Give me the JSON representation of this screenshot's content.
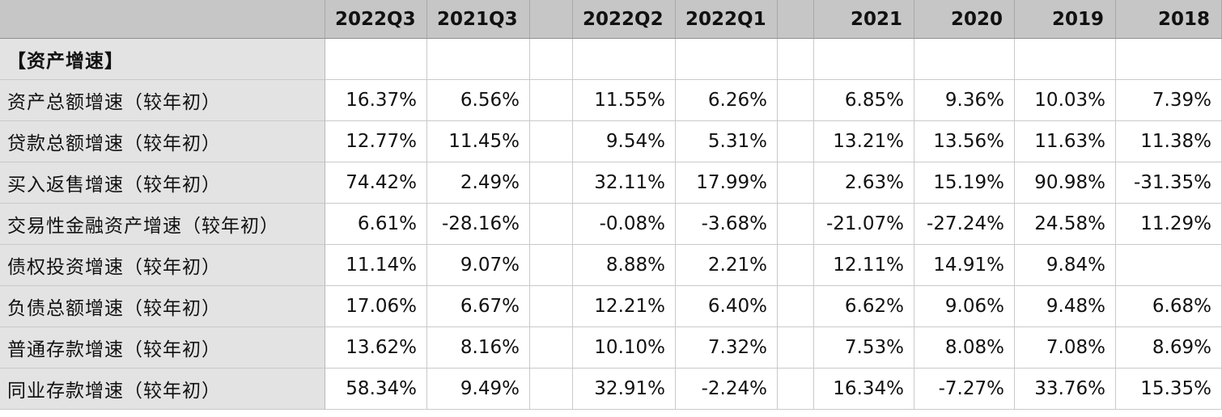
{
  "columns": [
    "2022Q3",
    "2021Q3",
    "",
    "2022Q2",
    "2022Q1",
    "",
    "2021",
    "2020",
    "2019",
    "2018"
  ],
  "section_title": "【资产增速】",
  "rows": [
    {
      "label": "资产总额增速（较年初）",
      "values": [
        "16.37%",
        "6.56%",
        "",
        "11.55%",
        "6.26%",
        "",
        "6.85%",
        "9.36%",
        "10.03%",
        "7.39%"
      ]
    },
    {
      "label": "贷款总额增速（较年初）",
      "values": [
        "12.77%",
        "11.45%",
        "",
        "9.54%",
        "5.31%",
        "",
        "13.21%",
        "13.56%",
        "11.63%",
        "11.38%"
      ]
    },
    {
      "label": "买入返售增速（较年初）",
      "values": [
        "74.42%",
        "2.49%",
        "",
        "32.11%",
        "17.99%",
        "",
        "2.63%",
        "15.19%",
        "90.98%",
        "-31.35%"
      ]
    },
    {
      "label": "交易性金融资产增速（较年初）",
      "values": [
        "6.61%",
        "-28.16%",
        "",
        "-0.08%",
        "-3.68%",
        "",
        "-21.07%",
        "-27.24%",
        "24.58%",
        "11.29%"
      ]
    },
    {
      "label": "债权投资增速（较年初）",
      "values": [
        "11.14%",
        "9.07%",
        "",
        "8.88%",
        "2.21%",
        "",
        "12.11%",
        "14.91%",
        "9.84%",
        ""
      ]
    },
    {
      "label": "负债总额增速（较年初）",
      "values": [
        "17.06%",
        "6.67%",
        "",
        "12.21%",
        "6.40%",
        "",
        "6.62%",
        "9.06%",
        "9.48%",
        "6.68%"
      ]
    },
    {
      "label": "普通存款增速（较年初）",
      "values": [
        "13.62%",
        "8.16%",
        "",
        "10.10%",
        "7.32%",
        "",
        "7.53%",
        "8.08%",
        "7.08%",
        "8.69%"
      ]
    },
    {
      "label": "同业存款增速（较年初）",
      "values": [
        "58.34%",
        "9.49%",
        "",
        "32.91%",
        "-2.24%",
        "",
        "16.34%",
        "-7.27%",
        "33.76%",
        "15.35%"
      ]
    }
  ]
}
